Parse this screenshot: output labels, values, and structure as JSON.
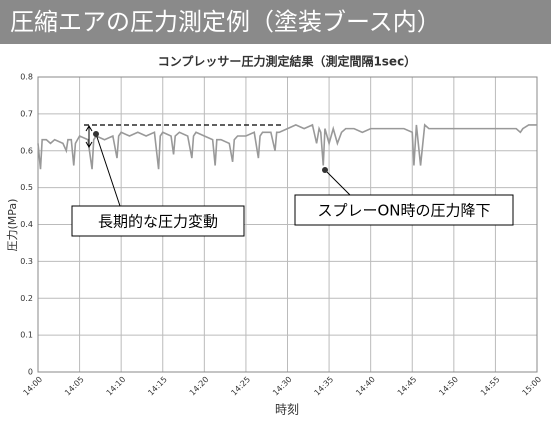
{
  "header": {
    "title": "圧縮エアの圧力測定例（塗装ブース内）"
  },
  "chart_data": {
    "type": "line",
    "title": "コンプレッサー圧力測定結果（測定間隔1sec）",
    "x_label": "時刻",
    "y_label": "圧力(MPa)",
    "annotations": [
      "長期的な圧力変動",
      "スプレーON時の圧力降下"
    ],
    "x": [
      0,
      0.3,
      0.5,
      1,
      1.5,
      2,
      3,
      3.4,
      3.6,
      4,
      4.3,
      4.5,
      5,
      6,
      6.5,
      6.7,
      7,
      8,
      9,
      9.5,
      9.7,
      10,
      11,
      12,
      13,
      14,
      14.5,
      14.7,
      15,
      16,
      16.3,
      16.5,
      17,
      18,
      18.5,
      18.7,
      19,
      20,
      21,
      21.3,
      21.5,
      22,
      23,
      23.4,
      23.6,
      24,
      25,
      26,
      26.5,
      26.7,
      27,
      28,
      28.5,
      28.7,
      29,
      30,
      31,
      32,
      33,
      33.5,
      33.8,
      34,
      34.3,
      34.5,
      35,
      35.5,
      36,
      36.5,
      37,
      38,
      39,
      40,
      41,
      42,
      43,
      44,
      45,
      45.2,
      45.5,
      46,
      46.5,
      47,
      48,
      50,
      52,
      54,
      56,
      57.5,
      58,
      58.3,
      59,
      60
    ],
    "series": [
      {
        "name": "圧力",
        "color": "#999999",
        "values": [
          0.62,
          0.55,
          0.63,
          0.63,
          0.62,
          0.63,
          0.62,
          0.6,
          0.63,
          0.63,
          0.56,
          0.62,
          0.64,
          0.63,
          0.55,
          0.63,
          0.64,
          0.63,
          0.64,
          0.58,
          0.64,
          0.65,
          0.64,
          0.65,
          0.64,
          0.65,
          0.55,
          0.64,
          0.65,
          0.64,
          0.59,
          0.64,
          0.65,
          0.64,
          0.58,
          0.64,
          0.65,
          0.64,
          0.63,
          0.56,
          0.63,
          0.63,
          0.62,
          0.57,
          0.63,
          0.64,
          0.64,
          0.65,
          0.58,
          0.64,
          0.65,
          0.65,
          0.6,
          0.65,
          0.65,
          0.66,
          0.67,
          0.66,
          0.67,
          0.62,
          0.66,
          0.65,
          0.56,
          0.66,
          0.62,
          0.66,
          0.62,
          0.65,
          0.66,
          0.66,
          0.65,
          0.66,
          0.66,
          0.66,
          0.66,
          0.66,
          0.65,
          0.56,
          0.67,
          0.56,
          0.67,
          0.66,
          0.66,
          0.66,
          0.66,
          0.66,
          0.66,
          0.66,
          0.65,
          0.66,
          0.67,
          0.67
        ]
      }
    ],
    "xlim": [
      0,
      60
    ],
    "xticks": [
      {
        "value": 0,
        "label": "14:00"
      },
      {
        "value": 5,
        "label": "14:05"
      },
      {
        "value": 10,
        "label": "14:10"
      },
      {
        "value": 15,
        "label": "14:15"
      },
      {
        "value": 20,
        "label": "14:20"
      },
      {
        "value": 25,
        "label": "14:25"
      },
      {
        "value": 30,
        "label": "14:30"
      },
      {
        "value": 35,
        "label": "14:35"
      },
      {
        "value": 40,
        "label": "14:40"
      },
      {
        "value": 45,
        "label": "14:45"
      },
      {
        "value": 50,
        "label": "14:50"
      },
      {
        "value": 55,
        "label": "14:55"
      },
      {
        "value": 60,
        "label": "15:00"
      }
    ],
    "ylim": [
      0,
      0.8
    ],
    "yticks": [
      0,
      0.1,
      0.2,
      0.3,
      0.4,
      0.5,
      0.6,
      0.7,
      0.8
    ],
    "grid": true
  }
}
